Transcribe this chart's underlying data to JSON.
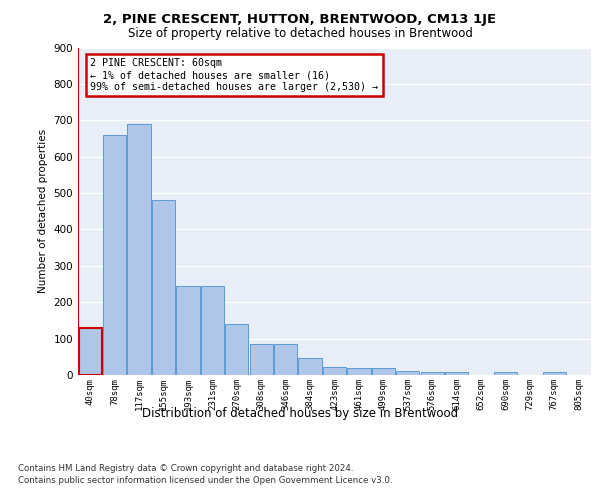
{
  "title": "2, PINE CRESCENT, HUTTON, BRENTWOOD, CM13 1JE",
  "subtitle": "Size of property relative to detached houses in Brentwood",
  "xlabel": "Distribution of detached houses by size in Brentwood",
  "ylabel": "Number of detached properties",
  "categories": [
    "40sqm",
    "78sqm",
    "117sqm",
    "155sqm",
    "193sqm",
    "231sqm",
    "270sqm",
    "308sqm",
    "346sqm",
    "384sqm",
    "423sqm",
    "461sqm",
    "499sqm",
    "537sqm",
    "576sqm",
    "614sqm",
    "652sqm",
    "690sqm",
    "729sqm",
    "767sqm",
    "805sqm"
  ],
  "values": [
    130,
    660,
    690,
    480,
    245,
    245,
    140,
    85,
    85,
    47,
    23,
    20,
    20,
    12,
    8,
    8,
    0,
    8,
    0,
    8,
    0
  ],
  "bar_color": "#aec6e8",
  "bar_edge_color": "#5b9bd5",
  "highlight_bar_index": 0,
  "highlight_edge_color": "#cc0000",
  "annotation_text": "2 PINE CRESCENT: 60sqm\n← 1% of detached houses are smaller (16)\n99% of semi-detached houses are larger (2,530) →",
  "annotation_box_edge_color": "#cc0000",
  "ylim": [
    0,
    900
  ],
  "yticks": [
    0,
    100,
    200,
    300,
    400,
    500,
    600,
    700,
    800,
    900
  ],
  "background_color": "#e8eef7",
  "footer_line1": "Contains HM Land Registry data © Crown copyright and database right 2024.",
  "footer_line2": "Contains public sector information licensed under the Open Government Licence v3.0."
}
